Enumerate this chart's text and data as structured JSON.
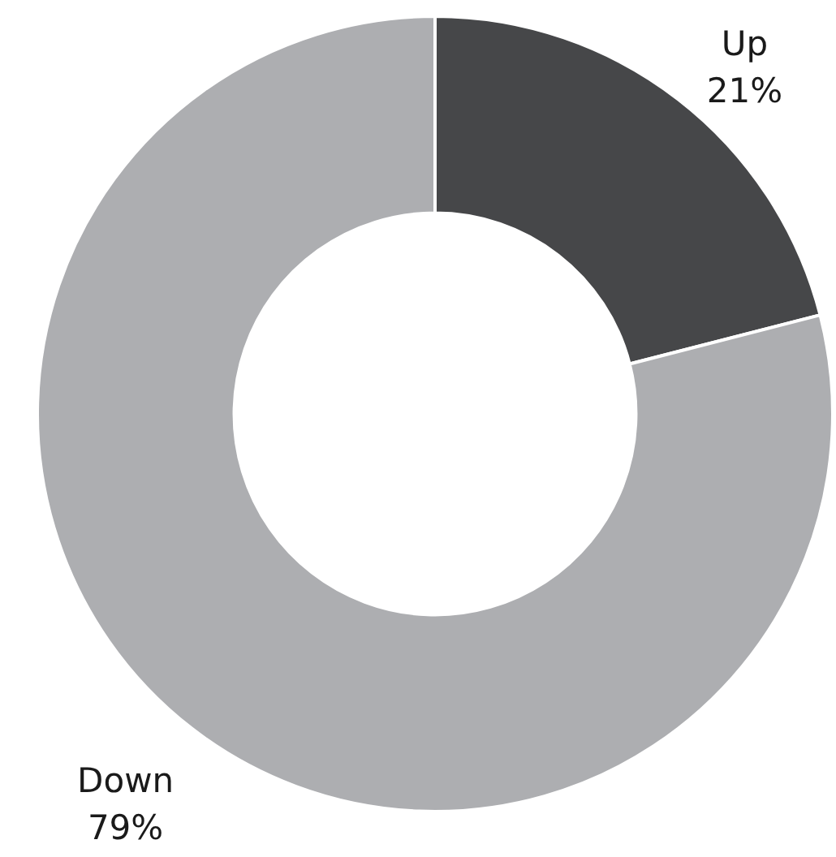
{
  "chart_data": {
    "type": "donut",
    "categories": [
      "Up",
      "Down"
    ],
    "values": [
      21,
      79
    ],
    "value_labels": [
      "21%",
      "79%"
    ],
    "colors": [
      "#464749",
      "#adaeb1"
    ]
  }
}
